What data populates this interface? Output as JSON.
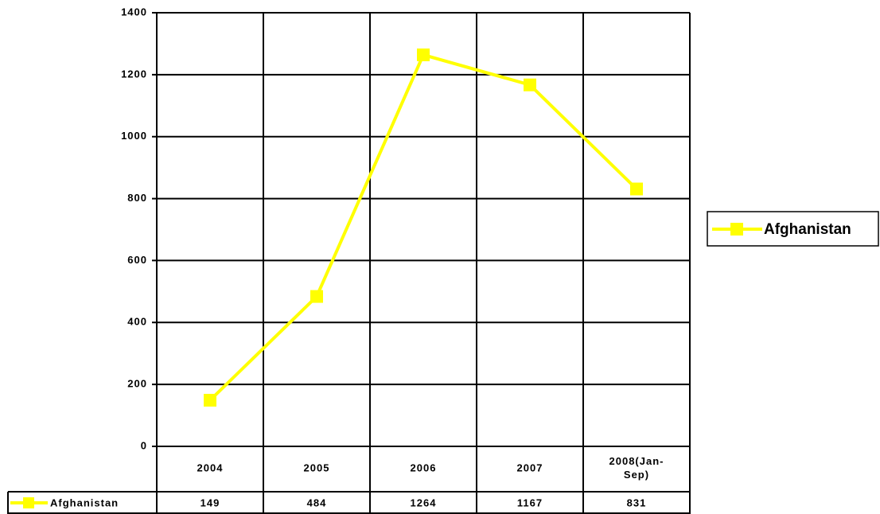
{
  "chart_data": {
    "type": "line",
    "categories": [
      "2004",
      "2005",
      "2006",
      "2007",
      "2008(Jan-Sep)"
    ],
    "series": [
      {
        "name": "Afghanistan",
        "color": "#ffff00",
        "values": [
          149,
          484,
          1264,
          1167,
          831
        ]
      }
    ],
    "ylim": [
      0,
      1400
    ],
    "yticks": [
      0,
      200,
      400,
      600,
      800,
      1000,
      1200,
      1400
    ],
    "grid": true,
    "legend": "right",
    "data_table": true
  }
}
